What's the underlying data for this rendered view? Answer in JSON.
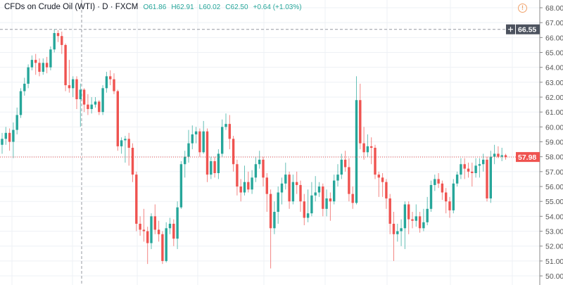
{
  "header": {
    "symbol_title": "CFDs on Crude Oil (WTI) · D · FXCM",
    "open": "O61.86",
    "high": "H62.91",
    "low": "L60.02",
    "close": "C62.50",
    "change": "+0.64 (+1.03%)"
  },
  "icons": {
    "alert": "alert-circle-icon",
    "crosshair_add": "plus-icon"
  },
  "colors": {
    "up": "#26a69a",
    "down": "#ef5350",
    "last_price": "#ef5350",
    "crosshair_label": "#4c525e"
  },
  "chart_data": {
    "type": "candlestick",
    "title": "CFDs on Crude Oil (WTI) · D · FXCM",
    "ylim": [
      49.5,
      68.3
    ],
    "yticks": [
      "68.00",
      "67.00",
      "66.00",
      "65.00",
      "64.00",
      "63.00",
      "62.00",
      "61.00",
      "60.00",
      "59.00",
      "58.00",
      "57.00",
      "56.00",
      "55.00",
      "54.00",
      "53.00",
      "52.00",
      "51.00",
      "50.00"
    ],
    "grid": true,
    "last_price": 57.98,
    "last_price_label": "57.98",
    "crosshair_price": 66.55,
    "crosshair_price_label": "66.55",
    "ohlc": [
      [
        58.8,
        59.6,
        58.2,
        59.2
      ],
      [
        59.2,
        60.0,
        58.8,
        59.6
      ],
      [
        59.6,
        59.9,
        58.4,
        59.0
      ],
      [
        59.0,
        60.3,
        57.9,
        59.8
      ],
      [
        59.8,
        61.3,
        59.5,
        60.8
      ],
      [
        60.8,
        62.6,
        60.6,
        62.4
      ],
      [
        62.4,
        63.3,
        62.1,
        62.9
      ],
      [
        62.9,
        64.2,
        62.6,
        64.0
      ],
      [
        64.0,
        64.8,
        63.8,
        64.5
      ],
      [
        64.5,
        64.9,
        63.5,
        64.3
      ],
      [
        64.3,
        64.6,
        63.4,
        63.7
      ],
      [
        63.7,
        64.6,
        63.5,
        64.3
      ],
      [
        64.3,
        64.7,
        63.6,
        64.0
      ],
      [
        64.0,
        65.4,
        63.8,
        65.2
      ],
      [
        65.2,
        66.55,
        65.0,
        66.3
      ],
      [
        66.3,
        66.5,
        65.7,
        66.1
      ],
      [
        66.1,
        66.4,
        64.9,
        65.5
      ],
      [
        65.5,
        65.6,
        62.4,
        62.8
      ],
      [
        62.8,
        64.5,
        62.3,
        62.6
      ],
      [
        62.6,
        63.4,
        62.0,
        63.2
      ],
      [
        63.2,
        63.4,
        61.2,
        61.86
      ],
      [
        61.86,
        62.91,
        60.02,
        62.5
      ],
      [
        62.5,
        62.6,
        61.0,
        61.5
      ],
      [
        61.5,
        62.2,
        60.8,
        61.2
      ],
      [
        61.2,
        62.0,
        60.9,
        61.5
      ],
      [
        61.5,
        62.0,
        61.3,
        61.7
      ],
      [
        61.7,
        61.8,
        60.8,
        61.0
      ],
      [
        61.0,
        62.8,
        60.8,
        62.6
      ],
      [
        62.6,
        63.7,
        62.3,
        63.4
      ],
      [
        63.4,
        63.8,
        62.8,
        63.2
      ],
      [
        63.2,
        63.6,
        62.2,
        62.4
      ],
      [
        62.4,
        62.5,
        58.4,
        58.7
      ],
      [
        58.7,
        59.3,
        58.2,
        59.1
      ],
      [
        59.1,
        59.4,
        57.6,
        59.2
      ],
      [
        59.2,
        59.6,
        57.4,
        58.6
      ],
      [
        58.6,
        58.9,
        56.3,
        56.8
      ],
      [
        56.8,
        57.0,
        53.0,
        53.5
      ],
      [
        53.5,
        54.0,
        52.7,
        53.1
      ],
      [
        53.1,
        54.5,
        52.3,
        53.0
      ],
      [
        53.0,
        53.3,
        50.8,
        52.2
      ],
      [
        52.2,
        54.2,
        51.8,
        54.0
      ],
      [
        54.0,
        54.8,
        52.8,
        53.1
      ],
      [
        53.1,
        53.7,
        52.3,
        52.8
      ],
      [
        52.8,
        53.0,
        50.8,
        51.0
      ],
      [
        51.0,
        53.6,
        50.9,
        53.2
      ],
      [
        53.2,
        53.9,
        52.8,
        53.5
      ],
      [
        53.5,
        53.8,
        52.0,
        52.5
      ],
      [
        52.5,
        55.0,
        51.8,
        54.6
      ],
      [
        54.6,
        57.7,
        54.5,
        57.5
      ],
      [
        57.5,
        58.4,
        56.6,
        58.0
      ],
      [
        58.0,
        59.8,
        57.6,
        58.9
      ],
      [
        58.9,
        60.1,
        58.5,
        59.5
      ],
      [
        59.5,
        60.0,
        58.9,
        59.7
      ],
      [
        59.7,
        59.9,
        58.0,
        58.3
      ],
      [
        58.3,
        60.4,
        58.2,
        59.7
      ],
      [
        59.7,
        59.9,
        56.3,
        56.8
      ],
      [
        56.8,
        58.0,
        56.5,
        57.7
      ],
      [
        57.7,
        58.0,
        56.6,
        56.9
      ],
      [
        56.9,
        58.5,
        56.5,
        58.2
      ],
      [
        58.2,
        60.5,
        58.0,
        60.0
      ],
      [
        60.0,
        60.9,
        59.8,
        60.2
      ],
      [
        60.2,
        60.8,
        58.5,
        59.2
      ],
      [
        59.2,
        59.4,
        57.0,
        57.5
      ],
      [
        57.5,
        57.8,
        55.4,
        56.0
      ],
      [
        56.0,
        56.5,
        55.0,
        55.6
      ],
      [
        55.6,
        57.4,
        55.4,
        56.3
      ],
      [
        56.3,
        57.0,
        55.6,
        55.8
      ],
      [
        55.8,
        57.1,
        55.5,
        56.6
      ],
      [
        56.6,
        58.0,
        56.3,
        57.5
      ],
      [
        57.5,
        58.4,
        57.2,
        57.8
      ],
      [
        57.8,
        58.0,
        56.0,
        56.6
      ],
      [
        56.6,
        56.9,
        54.3,
        55.5
      ],
      [
        55.5,
        55.8,
        50.5,
        53.2
      ],
      [
        53.2,
        55.0,
        52.8,
        54.3
      ],
      [
        54.3,
        56.0,
        53.5,
        55.6
      ],
      [
        55.6,
        56.6,
        54.8,
        56.2
      ],
      [
        56.2,
        57.6,
        55.8,
        56.8
      ],
      [
        56.8,
        57.0,
        54.5,
        55.0
      ],
      [
        55.0,
        56.8,
        54.8,
        56.3
      ],
      [
        56.3,
        57.0,
        55.5,
        56.1
      ],
      [
        56.1,
        56.4,
        54.3,
        55.0
      ],
      [
        55.0,
        55.5,
        53.4,
        53.9
      ],
      [
        53.9,
        55.8,
        53.6,
        54.2
      ],
      [
        54.2,
        56.3,
        54.0,
        55.4
      ],
      [
        55.4,
        56.7,
        55.0,
        55.6
      ],
      [
        55.6,
        56.3,
        55.3,
        56.0
      ],
      [
        56.0,
        56.2,
        54.0,
        54.5
      ],
      [
        54.5,
        55.8,
        54.0,
        55.2
      ],
      [
        55.2,
        55.6,
        53.7,
        55.0
      ],
      [
        55.0,
        56.8,
        54.8,
        56.4
      ],
      [
        56.4,
        57.5,
        56.0,
        56.8
      ],
      [
        56.8,
        58.2,
        56.5,
        57.8
      ],
      [
        57.8,
        58.4,
        57.0,
        57.3
      ],
      [
        57.3,
        57.9,
        55.0,
        55.5
      ],
      [
        55.5,
        56.0,
        54.5,
        54.9
      ],
      [
        54.9,
        63.4,
        54.8,
        61.8
      ],
      [
        61.8,
        62.9,
        58.5,
        58.9
      ],
      [
        58.9,
        60.0,
        57.8,
        58.3
      ],
      [
        58.3,
        59.5,
        58.0,
        58.7
      ],
      [
        58.7,
        59.3,
        57.5,
        58.6
      ],
      [
        58.6,
        58.8,
        56.5,
        56.8
      ],
      [
        56.8,
        57.0,
        55.3,
        56.6
      ],
      [
        56.6,
        56.9,
        55.3,
        56.3
      ],
      [
        56.3,
        56.5,
        54.5,
        55.2
      ],
      [
        55.2,
        55.5,
        52.8,
        53.5
      ],
      [
        53.5,
        54.3,
        51.0,
        52.8
      ],
      [
        52.8,
        53.5,
        52.3,
        53.0
      ],
      [
        53.0,
        53.8,
        52.0,
        53.2
      ],
      [
        53.2,
        55.0,
        51.8,
        54.8
      ],
      [
        54.8,
        55.0,
        52.8,
        53.8
      ],
      [
        53.8,
        54.3,
        53.2,
        53.7
      ],
      [
        53.7,
        54.8,
        53.3,
        54.0
      ],
      [
        54.0,
        54.3,
        52.9,
        53.2
      ],
      [
        53.2,
        54.5,
        53.0,
        53.6
      ],
      [
        53.6,
        55.3,
        53.4,
        54.5
      ],
      [
        54.5,
        56.4,
        54.3,
        56.1
      ],
      [
        56.1,
        56.8,
        55.7,
        56.5
      ],
      [
        56.5,
        56.9,
        55.9,
        56.2
      ],
      [
        56.2,
        56.4,
        55.1,
        55.6
      ],
      [
        55.6,
        55.9,
        54.2,
        55.0
      ],
      [
        55.0,
        55.3,
        53.9,
        54.4
      ],
      [
        54.4,
        56.5,
        54.2,
        56.2
      ],
      [
        56.2,
        57.0,
        56.0,
        56.8
      ],
      [
        56.8,
        57.9,
        56.5,
        57.5
      ],
      [
        57.5,
        57.9,
        56.5,
        57.2
      ],
      [
        57.2,
        57.6,
        56.6,
        57.0
      ],
      [
        57.0,
        57.6,
        56.0,
        56.9
      ],
      [
        56.9,
        57.9,
        56.6,
        57.4
      ],
      [
        57.4,
        57.9,
        56.6,
        57.5
      ],
      [
        57.5,
        58.2,
        57.0,
        57.8
      ],
      [
        57.8,
        58.0,
        55.0,
        55.2
      ],
      [
        55.2,
        58.4,
        54.9,
        58.0
      ],
      [
        58.0,
        58.8,
        57.5,
        58.2
      ],
      [
        58.2,
        58.7,
        57.9,
        58.0
      ],
      [
        58.0,
        58.6,
        57.7,
        58.1
      ],
      [
        58.1,
        58.2,
        57.8,
        57.98
      ]
    ]
  }
}
